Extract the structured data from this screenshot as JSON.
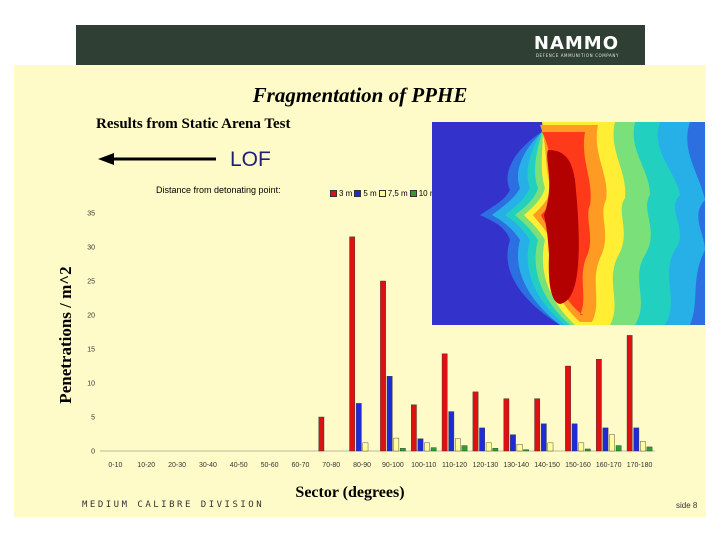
{
  "header": {
    "logo_text": "NAMMO",
    "logo_tagline": "DEFENCE AMMUNITION COMPANY"
  },
  "slide": {
    "title": "Fragmentation of PPHE",
    "subtitle": "Results from Static Arena Test",
    "lof_label": "LOF",
    "distance_label": "Distance from detonating point:",
    "footer_division": "MEDIUM CALIBRE DIVISION",
    "page_number": "side 8"
  },
  "chart_data": {
    "type": "bar",
    "title": "",
    "xlabel": "Sector (degrees)",
    "ylabel": "Penetrations / m^2",
    "ylim": [
      0,
      35
    ],
    "yticks": [
      0,
      5,
      10,
      15,
      20,
      25,
      30,
      35
    ],
    "grid": false,
    "legend_position": "top",
    "categories": [
      "0-10",
      "10-20",
      "20-30",
      "30-40",
      "40-50",
      "50-60",
      "60-70",
      "70-80",
      "80-90",
      "90-100",
      "100-110",
      "110-120",
      "120-130",
      "130-140",
      "140-150",
      "150-160",
      "160-170",
      "170-180"
    ],
    "series": [
      {
        "name": "3 m",
        "color": "#dd1111",
        "values": [
          0,
          0,
          0,
          0,
          0,
          0,
          0,
          5,
          31.5,
          25,
          6.8,
          14.3,
          8.7,
          7.7,
          7.7,
          12.5,
          13.5,
          17
        ]
      },
      {
        "name": "5 m",
        "color": "#1f2bd6",
        "values": [
          0,
          0,
          0,
          0,
          0,
          0,
          0,
          0,
          7,
          11,
          1.8,
          5.8,
          3.4,
          2.4,
          4,
          4,
          3.4,
          3.4
        ]
      },
      {
        "name": "7,5 m",
        "color": "#ffff99",
        "values": [
          0,
          0,
          0,
          0,
          0,
          0,
          0,
          0,
          1.2,
          1.9,
          1.2,
          1.8,
          1.2,
          1.0,
          1.2,
          1.2,
          2.4,
          1.4
        ]
      },
      {
        "name": "10 m",
        "color": "#2aa22a",
        "values": [
          0,
          0,
          0,
          0,
          0,
          0,
          0,
          0,
          0,
          0.4,
          0.5,
          0.8,
          0.4,
          0.2,
          0,
          0.3,
          0.8,
          0.6
        ]
      }
    ]
  }
}
